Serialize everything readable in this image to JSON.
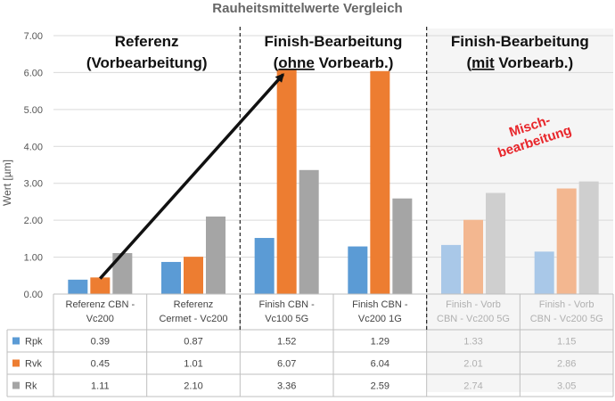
{
  "chart_data": {
    "type": "bar",
    "title": "Rauheitsmittelwerte Vergleich",
    "ylabel": "Wert [µm]",
    "ylim": [
      0,
      7
    ],
    "yticks": [
      "0.00",
      "1.00",
      "2.00",
      "3.00",
      "4.00",
      "5.00",
      "6.00",
      "7.00"
    ],
    "grid": true,
    "categories": [
      [
        "Referenz CBN -",
        "Vc200"
      ],
      [
        "Referenz",
        "Cermet - Vc200"
      ],
      [
        "Finish CBN -",
        "Vc100 5G"
      ],
      [
        "Finish CBN -",
        "Vc200 1G"
      ],
      [
        "Finish - Vorb",
        "CBN - Vc200 5G"
      ],
      [
        "Finish - Vorb",
        "CBN - Vc200 5G"
      ]
    ],
    "faded_categories": [
      4,
      5
    ],
    "series": [
      {
        "name": "Rpk",
        "color": "#5b9bd5",
        "faded_color": "#a9c8e8",
        "values": [
          0.39,
          0.87,
          1.52,
          1.29,
          1.33,
          1.15
        ],
        "labels": [
          "0.39",
          "0.87",
          "1.52",
          "1.29",
          "1.33",
          "1.15"
        ]
      },
      {
        "name": "Rvk",
        "color": "#ed7d31",
        "faded_color": "#f3b790",
        "values": [
          0.45,
          1.01,
          6.07,
          6.04,
          2.01,
          2.86
        ],
        "labels": [
          "0.45",
          "1.01",
          "6.07",
          "6.04",
          "2.01",
          "2.86"
        ]
      },
      {
        "name": "Rk",
        "color": "#a5a5a5",
        "faded_color": "#cfcfcf",
        "values": [
          1.11,
          2.1,
          3.36,
          2.59,
          2.74,
          3.05
        ],
        "labels": [
          "1.11",
          "2.10",
          "3.36",
          "2.59",
          "2.74",
          "3.05"
        ]
      }
    ],
    "group_headings": [
      {
        "lines": [
          "Referenz",
          "(Vorbearbeitung)"
        ],
        "span": [
          0,
          1
        ]
      },
      {
        "lines": [
          "Finish-Bearbeitung",
          "(ohne Vorbearb.)"
        ],
        "underline": "ohne",
        "span": [
          2,
          3
        ]
      },
      {
        "lines": [
          "Finish-Bearbeitung",
          "(mit Vorbearb.)"
        ],
        "underline": "mit",
        "span": [
          4,
          5
        ]
      }
    ],
    "annotation": {
      "lines": [
        "Misch-",
        "bearbeitung"
      ],
      "color": "#e8262b"
    },
    "arrow": {
      "from": {
        "category": 0,
        "value": 0.42
      },
      "to": {
        "category": 2,
        "value": 6.02
      }
    }
  }
}
